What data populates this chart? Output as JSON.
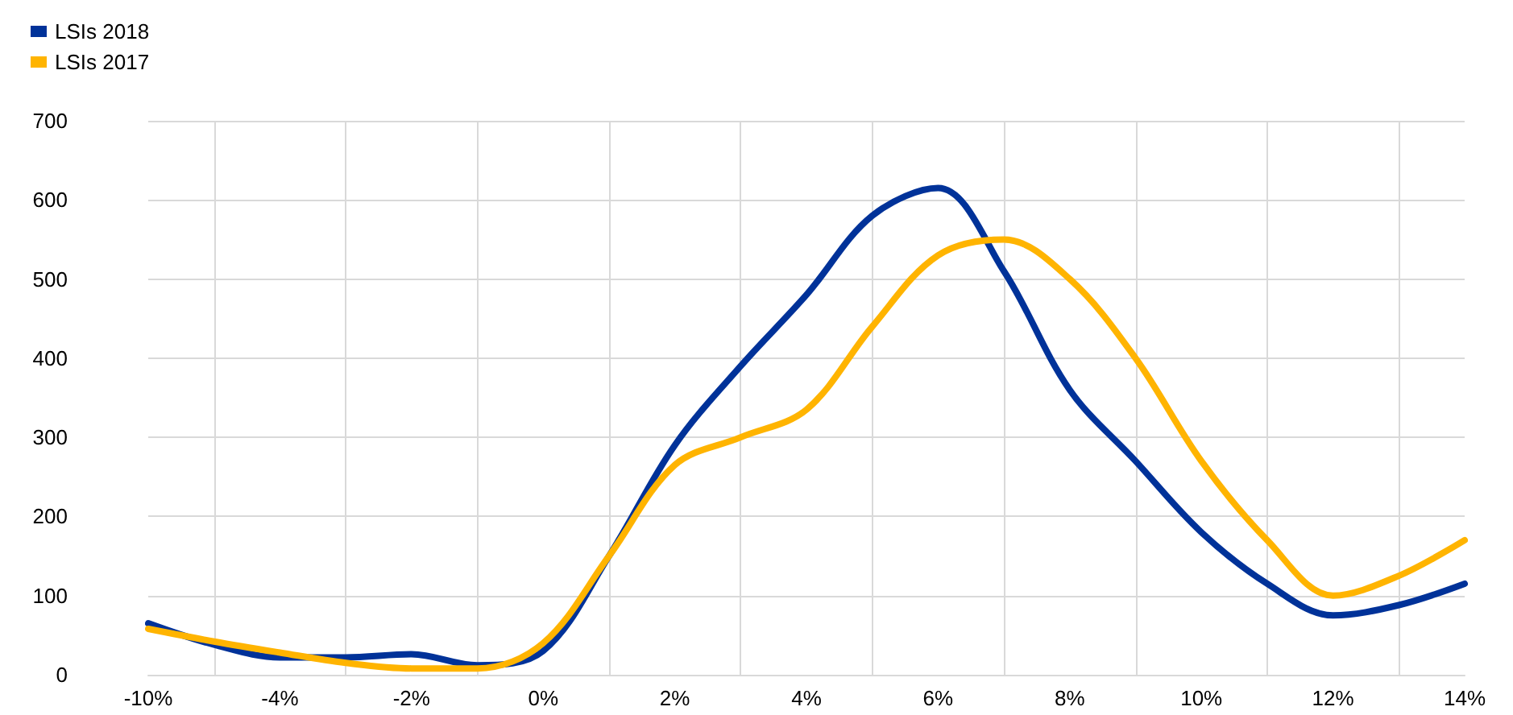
{
  "chart_data": {
    "type": "line",
    "categories": [
      "-10%",
      null,
      "-4%",
      null,
      "-2%",
      null,
      "0%",
      null,
      "2%",
      null,
      "4%",
      null,
      "6%",
      null,
      "8%",
      null,
      "10%",
      null,
      "12%",
      null,
      "14%"
    ],
    "series": [
      {
        "name": "LSIs 2018",
        "color": "#003299",
        "values": [
          65,
          38,
          22,
          22,
          26,
          12,
          30,
          150,
          290,
          390,
          480,
          580,
          615,
          510,
          360,
          270,
          180,
          115,
          75,
          88,
          115
        ]
      },
      {
        "name": "LSIs 2017",
        "color": "#ffb400",
        "values": [
          58,
          42,
          28,
          15,
          8,
          8,
          40,
          150,
          265,
          300,
          335,
          440,
          530,
          550,
          500,
          400,
          270,
          170,
          100,
          125,
          170
        ]
      }
    ],
    "ylim": [
      0,
      700
    ],
    "yticks": [
      0,
      100,
      200,
      300,
      400,
      500,
      600,
      700
    ],
    "grid": true,
    "legend": "top left",
    "marker": "none",
    "line_style": "solid"
  }
}
